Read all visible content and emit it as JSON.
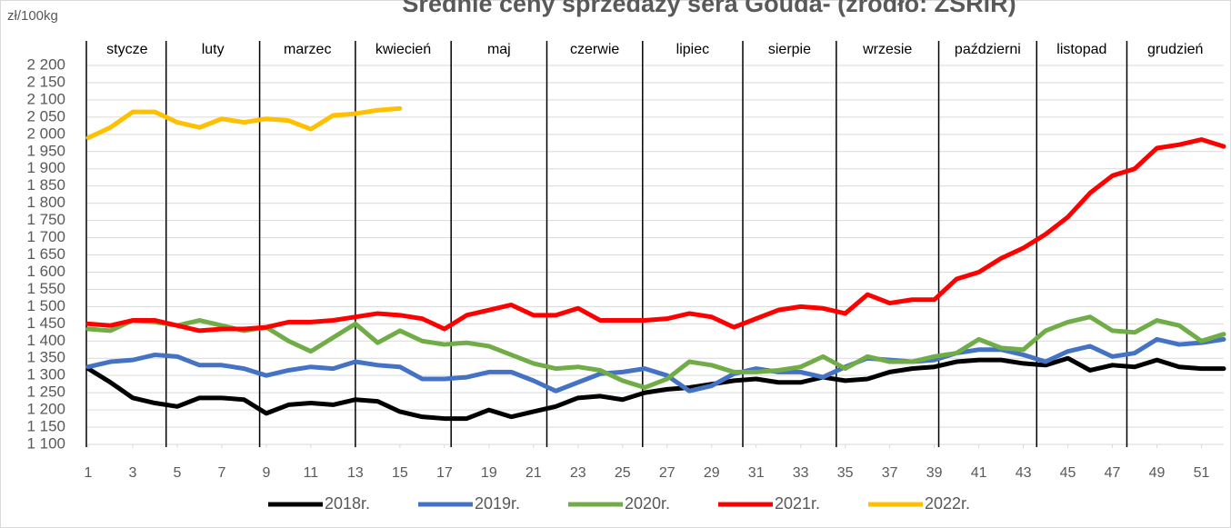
{
  "chart_data": {
    "type": "line",
    "title": "Średnie ceny sprzedaży sera Gouda- (źródło: ZSRiR)",
    "y_label": "zł/100kg",
    "x": [
      1,
      2,
      3,
      4,
      5,
      6,
      7,
      8,
      9,
      10,
      11,
      12,
      13,
      14,
      15,
      16,
      17,
      18,
      19,
      20,
      21,
      22,
      23,
      24,
      25,
      26,
      27,
      28,
      29,
      30,
      31,
      32,
      33,
      34,
      35,
      36,
      37,
      38,
      39,
      40,
      41,
      42,
      43,
      44,
      45,
      46,
      47,
      48,
      49,
      50,
      51,
      52
    ],
    "xlim": [
      1,
      52
    ],
    "xticks": [
      1,
      3,
      5,
      7,
      9,
      11,
      13,
      15,
      17,
      19,
      21,
      23,
      25,
      27,
      29,
      31,
      33,
      35,
      37,
      39,
      41,
      43,
      45,
      47,
      49,
      51
    ],
    "ylim": [
      1100,
      2200
    ],
    "yticks": [
      {
        "value": 1100,
        "label": "1 100"
      },
      {
        "value": 1150,
        "label": "1 150"
      },
      {
        "value": 1200,
        "label": "1 200"
      },
      {
        "value": 1250,
        "label": "1 250"
      },
      {
        "value": 1300,
        "label": "1 300"
      },
      {
        "value": 1350,
        "label": "1 350"
      },
      {
        "value": 1400,
        "label": "1 400"
      },
      {
        "value": 1450,
        "label": "1 450"
      },
      {
        "value": 1500,
        "label": "1 500"
      },
      {
        "value": 1550,
        "label": "1 550"
      },
      {
        "value": 1600,
        "label": "1 600"
      },
      {
        "value": 1650,
        "label": "1 650"
      },
      {
        "value": 1700,
        "label": "1 700"
      },
      {
        "value": 1750,
        "label": "1 750"
      },
      {
        "value": 1800,
        "label": "1 800"
      },
      {
        "value": 1850,
        "label": "1 850"
      },
      {
        "value": 1900,
        "label": "1 900"
      },
      {
        "value": 1950,
        "label": "1 950"
      },
      {
        "value": 2000,
        "label": "2 000"
      },
      {
        "value": 2050,
        "label": "2 050"
      },
      {
        "value": 2100,
        "label": "2 100"
      },
      {
        "value": 2150,
        "label": "2 150"
      },
      {
        "value": 2200,
        "label": "2 200"
      }
    ],
    "grid": true,
    "legend": "bottom",
    "months": [
      "stycze",
      "luty",
      "marzec",
      "kwiecień",
      "maj",
      "czerwie",
      "lipiec",
      "sierpie",
      "wrzesie",
      "październi",
      "listopad",
      "grudzień"
    ],
    "month_dividers": [
      4.5,
      8.7,
      13.0,
      17.3,
      21.6,
      25.9,
      30.4,
      34.6,
      39.2,
      43.6,
      47.65
    ],
    "series": [
      {
        "name": "2018r.",
        "color": "#000000",
        "values": [
          1320,
          1280,
          1235,
          1220,
          1210,
          1235,
          1235,
          1230,
          1190,
          1215,
          1220,
          1215,
          1230,
          1225,
          1195,
          1180,
          1175,
          1175,
          1200,
          1180,
          1195,
          1210,
          1235,
          1240,
          1230,
          1250,
          1260,
          1265,
          1275,
          1285,
          1290,
          1280,
          1280,
          1295,
          1285,
          1290,
          1310,
          1320,
          1325,
          1340,
          1345,
          1345,
          1335,
          1330,
          1350,
          1315,
          1330,
          1325,
          1345,
          1325,
          1320,
          1320
        ]
      },
      {
        "name": "2019r.",
        "color": "#4472c4",
        "values": [
          1325,
          1340,
          1345,
          1360,
          1355,
          1330,
          1330,
          1320,
          1300,
          1315,
          1325,
          1320,
          1340,
          1330,
          1325,
          1290,
          1290,
          1295,
          1310,
          1310,
          1285,
          1255,
          1280,
          1305,
          1310,
          1320,
          1300,
          1255,
          1270,
          1305,
          1320,
          1310,
          1310,
          1295,
          1325,
          1350,
          1345,
          1340,
          1345,
          1365,
          1375,
          1375,
          1360,
          1340,
          1370,
          1385,
          1355,
          1365,
          1405,
          1390,
          1395,
          1405
        ]
      },
      {
        "name": "2020r.",
        "color": "#70ad47",
        "values": [
          1435,
          1430,
          1460,
          1455,
          1445,
          1460,
          1445,
          1430,
          1440,
          1400,
          1370,
          1410,
          1450,
          1395,
          1430,
          1400,
          1390,
          1395,
          1385,
          1360,
          1335,
          1320,
          1325,
          1315,
          1285,
          1265,
          1290,
          1340,
          1330,
          1310,
          1310,
          1315,
          1325,
          1355,
          1320,
          1355,
          1340,
          1340,
          1355,
          1365,
          1405,
          1380,
          1375,
          1430,
          1455,
          1470,
          1430,
          1425,
          1460,
          1445,
          1400,
          1420
        ]
      },
      {
        "name": "2021r.",
        "color": "#ff0000",
        "values": [
          1450,
          1445,
          1460,
          1460,
          1445,
          1430,
          1435,
          1435,
          1440,
          1455,
          1455,
          1460,
          1470,
          1480,
          1475,
          1465,
          1435,
          1475,
          1490,
          1505,
          1475,
          1475,
          1495,
          1460,
          1460,
          1460,
          1465,
          1480,
          1470,
          1440,
          1465,
          1490,
          1500,
          1495,
          1480,
          1535,
          1510,
          1520,
          1520,
          1580,
          1600,
          1640,
          1670,
          1710,
          1760,
          1830,
          1880,
          1900,
          1960,
          1970,
          1985,
          1965
        ]
      },
      {
        "name": "2022r.",
        "color": "#ffc000",
        "values": [
          1990,
          2020,
          2065,
          2065,
          2035,
          2020,
          2045,
          2035,
          2045,
          2040,
          2015,
          2055,
          2060,
          2070,
          2075,
          null,
          null,
          null,
          null,
          null,
          null,
          null,
          null,
          null,
          null,
          null,
          null,
          null,
          null,
          null,
          null,
          null,
          null,
          null,
          null,
          null,
          null,
          null,
          null,
          null,
          null,
          null,
          null,
          null,
          null,
          null,
          null,
          null,
          null,
          null,
          null,
          null
        ]
      }
    ]
  }
}
